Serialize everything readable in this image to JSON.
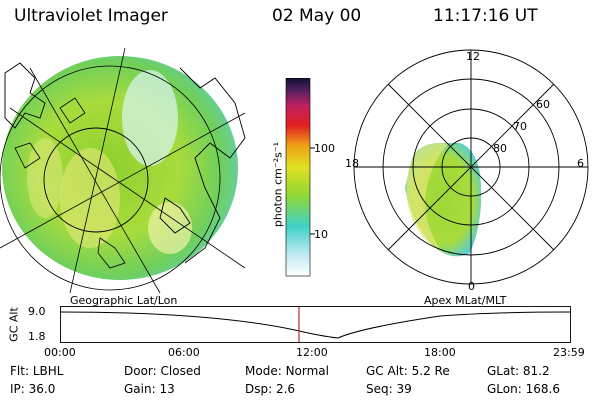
{
  "header": {
    "instrument": "Ultraviolet Imager",
    "date": "02 May 00",
    "time": "11:17:16 UT"
  },
  "colorbar": {
    "unit_label": "photon cm⁻²s⁻¹",
    "ticks": [
      "100",
      "10"
    ]
  },
  "left_panel": {
    "caption": "Geographic Lat/Lon"
  },
  "right_panel": {
    "caption": "Apex MLat/MLT",
    "mlt_labels": {
      "top": "12",
      "left": "18",
      "right": "6",
      "bottom": "0"
    },
    "lat_labels": [
      "60",
      "70",
      "80"
    ]
  },
  "altitude_plot": {
    "axis_label": "GC Alt",
    "y_ticks": [
      "9.0",
      "1.8"
    ],
    "x_ticks": [
      "00:00",
      "06:00",
      "12:00",
      "18:00",
      "23:59"
    ],
    "marker_color": "#b03030"
  },
  "info_rows": [
    [
      {
        "key": "Flt:",
        "value": "LBHL"
      },
      {
        "key": "Door:",
        "value": "Closed"
      },
      {
        "key": "Mode:",
        "value": "Normal"
      },
      {
        "key": "GC Alt:",
        "value": "5.2 Re"
      },
      {
        "key": "GLat:",
        "value": "81.2"
      }
    ],
    [
      {
        "key": "IP:",
        "value": "36.0"
      },
      {
        "key": "Gain:",
        "value": "13"
      },
      {
        "key": "Dsp:",
        "value": "2.6"
      },
      {
        "key": "Seq:",
        "value": "39"
      },
      {
        "key": "GLon:",
        "value": "168.6"
      }
    ]
  ]
}
